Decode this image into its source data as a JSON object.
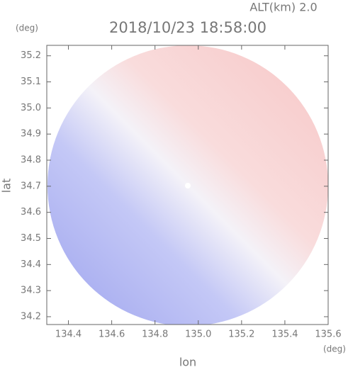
{
  "chart_data": {
    "type": "radar-image",
    "title": "2018/10/23 18:58:00",
    "annotation": "ALT(km) 2.0",
    "x_unit": "(deg)",
    "y_unit": "(deg)",
    "xlabel": "lon",
    "ylabel": "lat",
    "xlim": [
      134.3,
      135.6
    ],
    "xticks": [
      134.4,
      134.6,
      134.8,
      {
        "value": 135,
        "label": "135.0"
      },
      135.2,
      135.4,
      135.6
    ],
    "ylim": [
      34.17,
      35.24
    ],
    "yticks": [
      34.2,
      34.3,
      34.4,
      34.5,
      34.6,
      34.7,
      34.8,
      34.9,
      {
        "value": 35,
        "label": "35.0"
      },
      35.1,
      35.2
    ]
  }
}
